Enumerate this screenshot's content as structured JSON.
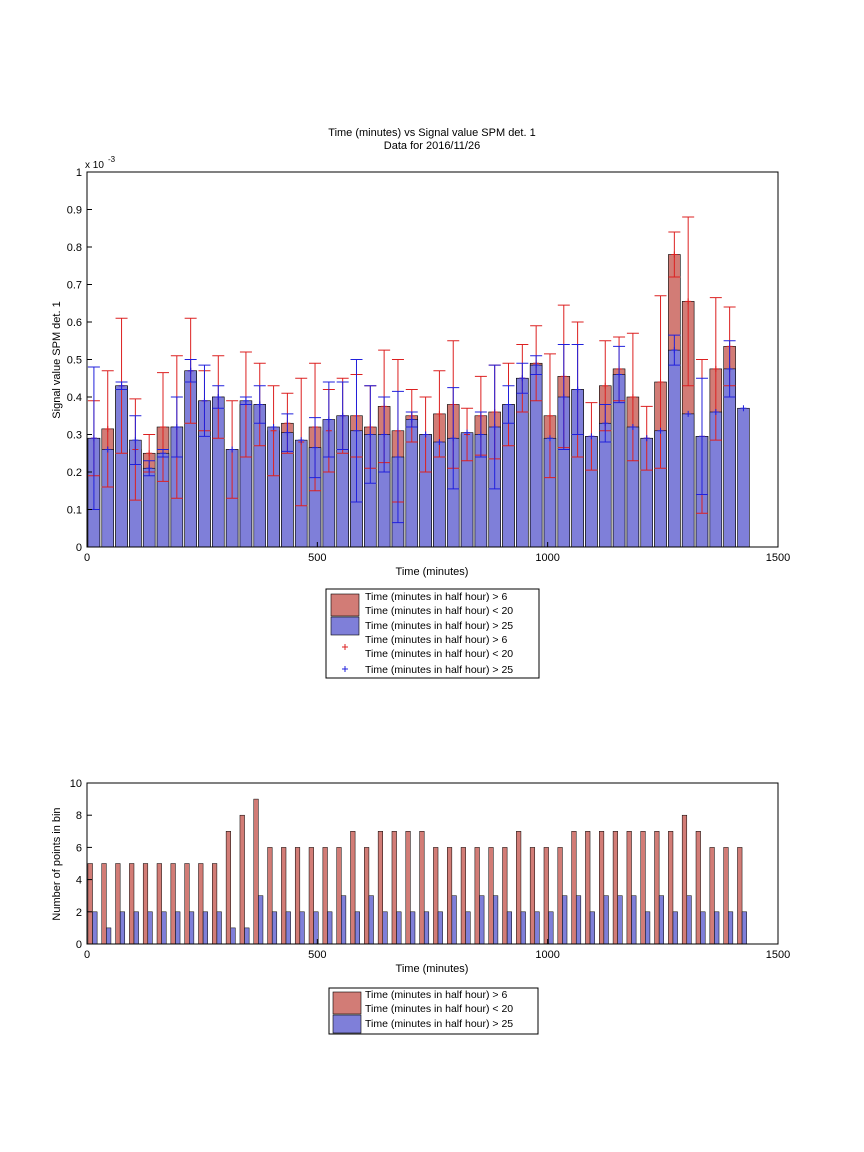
{
  "colors": {
    "red_fill": "#d27c76",
    "blue_fill": "#7f7fd9",
    "red_line": "#dc2020",
    "blue_line": "#2020dc"
  },
  "chart_data": [
    {
      "type": "bar",
      "title": "Time (minutes) vs Signal value SPM det. 1",
      "subtitle": "Data for 2016/11/26",
      "xlabel": "Time (minutes)",
      "ylabel": "Signal value SPM det. 1",
      "y_exponent_label": "x 10",
      "y_exponent": "-3",
      "xlim": [
        0,
        1500
      ],
      "ylim": [
        0,
        1
      ],
      "xticks": [
        "0",
        "500",
        "1000",
        "1500"
      ],
      "yticks": [
        "0",
        "0.1",
        "0.2",
        "0.3",
        "0.4",
        "0.5",
        "0.6",
        "0.7",
        "0.8",
        "0.9",
        "1"
      ],
      "bin_width": 30,
      "legend_position": "below",
      "legend": [
        {
          "kind": "patch",
          "color": "red",
          "lines": [
            "Time (minutes in half hour) > 6",
            "Time (minutes in half hour) < 20"
          ]
        },
        {
          "kind": "patch",
          "color": "blue",
          "lines": [
            "Time (minutes in half hour) > 25"
          ]
        },
        {
          "kind": "marker",
          "color": "red",
          "lines": [
            "Time (minutes in half hour) > 6",
            "Time (minutes in half hour) < 20"
          ]
        },
        {
          "kind": "marker",
          "color": "blue",
          "lines": [
            "Time (minutes in half hour) > 25"
          ]
        }
      ],
      "series": [
        {
          "color": "red",
          "x": [
            15,
            45,
            75,
            105,
            135,
            165,
            195,
            225,
            255,
            285,
            315,
            345,
            375,
            405,
            435,
            465,
            495,
            525,
            555,
            585,
            615,
            645,
            675,
            705,
            735,
            765,
            795,
            825,
            855,
            885,
            915,
            945,
            975,
            1005,
            1035,
            1065,
            1095,
            1125,
            1155,
            1185,
            1215,
            1245,
            1275,
            1305,
            1335,
            1365,
            1395
          ],
          "values": [
            0.29,
            0.315,
            0.43,
            0.26,
            0.25,
            0.32,
            0.32,
            0.47,
            0.39,
            0.4,
            0.26,
            0.38,
            0.38,
            0.31,
            0.33,
            0.28,
            0.32,
            0.31,
            0.35,
            0.35,
            0.32,
            0.375,
            0.31,
            0.35,
            0.3,
            0.355,
            0.38,
            0.3,
            0.35,
            0.36,
            0.38,
            0.45,
            0.49,
            0.35,
            0.455,
            0.42,
            0.295,
            0.43,
            0.475,
            0.4,
            0.29,
            0.44,
            0.78,
            0.655,
            0.295,
            0.475,
            0.535
          ],
          "err": [
            0.1,
            0.155,
            0.18,
            0.135,
            0.05,
            0.145,
            0.19,
            0.14,
            0.08,
            0.11,
            0.13,
            0.14,
            0.11,
            0.12,
            0.08,
            0.17,
            0.17,
            0.11,
            0.1,
            0.11,
            0.11,
            0.15,
            0.19,
            0.07,
            0.1,
            0.115,
            0.17,
            0.07,
            0.105,
            0.125,
            0.11,
            0.09,
            0.1,
            0.165,
            0.19,
            0.18,
            0.09,
            0.12,
            0.085,
            0.17,
            0.085,
            0.23,
            0.06,
            0.225,
            0.205,
            0.19,
            0.105
          ]
        },
        {
          "color": "blue",
          "x": [
            15,
            45,
            75,
            105,
            135,
            165,
            195,
            225,
            255,
            285,
            315,
            345,
            375,
            405,
            435,
            465,
            495,
            525,
            555,
            585,
            615,
            645,
            675,
            705,
            735,
            765,
            795,
            825,
            855,
            885,
            915,
            945,
            975,
            1005,
            1035,
            1065,
            1095,
            1125,
            1155,
            1185,
            1215,
            1245,
            1275,
            1305,
            1335,
            1365,
            1395,
            1425
          ],
          "values": [
            0.29,
            0.26,
            0.43,
            0.285,
            0.21,
            0.25,
            0.32,
            0.47,
            0.39,
            0.4,
            0.26,
            0.39,
            0.38,
            0.32,
            0.305,
            0.285,
            0.265,
            0.34,
            0.35,
            0.31,
            0.3,
            0.3,
            0.24,
            0.34,
            0.3,
            0.28,
            0.29,
            0.305,
            0.3,
            0.32,
            0.38,
            0.45,
            0.485,
            0.29,
            0.4,
            0.42,
            0.295,
            0.33,
            0.46,
            0.32,
            0.29,
            0.31,
            0.525,
            0.355,
            0.295,
            0.36,
            0.475,
            0.37
          ],
          "err": [
            0.19,
            0.0,
            0.01,
            0.065,
            0.02,
            0.01,
            0.08,
            0.03,
            0.095,
            0.03,
            0.0,
            0.01,
            0.05,
            0.0,
            0.05,
            0.0,
            0.08,
            0.1,
            0.09,
            0.19,
            0.13,
            0.1,
            0.175,
            0.02,
            0.0,
            0.0,
            0.135,
            0.0,
            0.06,
            0.165,
            0.05,
            0.04,
            0.025,
            0.0,
            0.14,
            0.12,
            0.0,
            0.05,
            0.075,
            0.0,
            0.0,
            0.0,
            0.04,
            0.0,
            0.155,
            0.0,
            0.075,
            0.0
          ]
        }
      ]
    },
    {
      "type": "bar",
      "xlabel": "Time (minutes)",
      "ylabel": "Number of points in bin",
      "xlim": [
        0,
        1500
      ],
      "ylim": [
        0,
        10
      ],
      "xticks": [
        "0",
        "500",
        "1000",
        "1500"
      ],
      "yticks": [
        "0",
        "2",
        "4",
        "6",
        "8",
        "10"
      ],
      "legend_position": "below",
      "legend": [
        {
          "kind": "patch",
          "color": "red",
          "lines": [
            "Time (minutes in half hour) > 6",
            "Time (minutes in half hour) < 20"
          ]
        },
        {
          "kind": "patch",
          "color": "blue",
          "lines": [
            "Time (minutes in half hour) > 25"
          ]
        }
      ],
      "series": [
        {
          "color": "red",
          "x": [
            7,
            37,
            67,
            97,
            127,
            157,
            187,
            217,
            247,
            277,
            307,
            337,
            367,
            397,
            427,
            457,
            487,
            517,
            547,
            577,
            607,
            637,
            667,
            697,
            727,
            757,
            787,
            817,
            847,
            877,
            907,
            937,
            967,
            997,
            1027,
            1057,
            1087,
            1117,
            1147,
            1177,
            1207,
            1237,
            1267,
            1297,
            1327,
            1357,
            1387,
            1417
          ],
          "values": [
            5,
            5,
            5,
            5,
            5,
            5,
            5,
            5,
            5,
            5,
            7,
            8,
            9,
            6,
            6,
            6,
            6,
            6,
            6,
            7,
            6,
            7,
            7,
            7,
            7,
            6,
            6,
            6,
            6,
            6,
            6,
            7,
            6,
            6,
            6,
            7,
            7,
            7,
            7,
            7,
            7,
            7,
            7,
            8,
            7,
            6,
            6,
            6
          ]
        },
        {
          "color": "blue",
          "x": [
            17,
            47,
            77,
            107,
            137,
            167,
            197,
            227,
            257,
            287,
            317,
            347,
            377,
            407,
            437,
            467,
            497,
            527,
            557,
            587,
            617,
            647,
            677,
            707,
            737,
            767,
            797,
            827,
            857,
            887,
            917,
            947,
            977,
            1007,
            1037,
            1067,
            1097,
            1127,
            1157,
            1187,
            1217,
            1247,
            1277,
            1307,
            1337,
            1367,
            1397,
            1427
          ],
          "values": [
            2,
            1,
            2,
            2,
            2,
            2,
            2,
            2,
            2,
            2,
            1,
            1,
            3,
            2,
            2,
            2,
            2,
            2,
            3,
            2,
            3,
            2,
            2,
            2,
            2,
            2,
            3,
            2,
            3,
            3,
            2,
            2,
            2,
            2,
            3,
            3,
            2,
            3,
            3,
            3,
            2,
            3,
            2,
            3,
            2,
            2,
            2,
            2
          ]
        }
      ]
    }
  ]
}
